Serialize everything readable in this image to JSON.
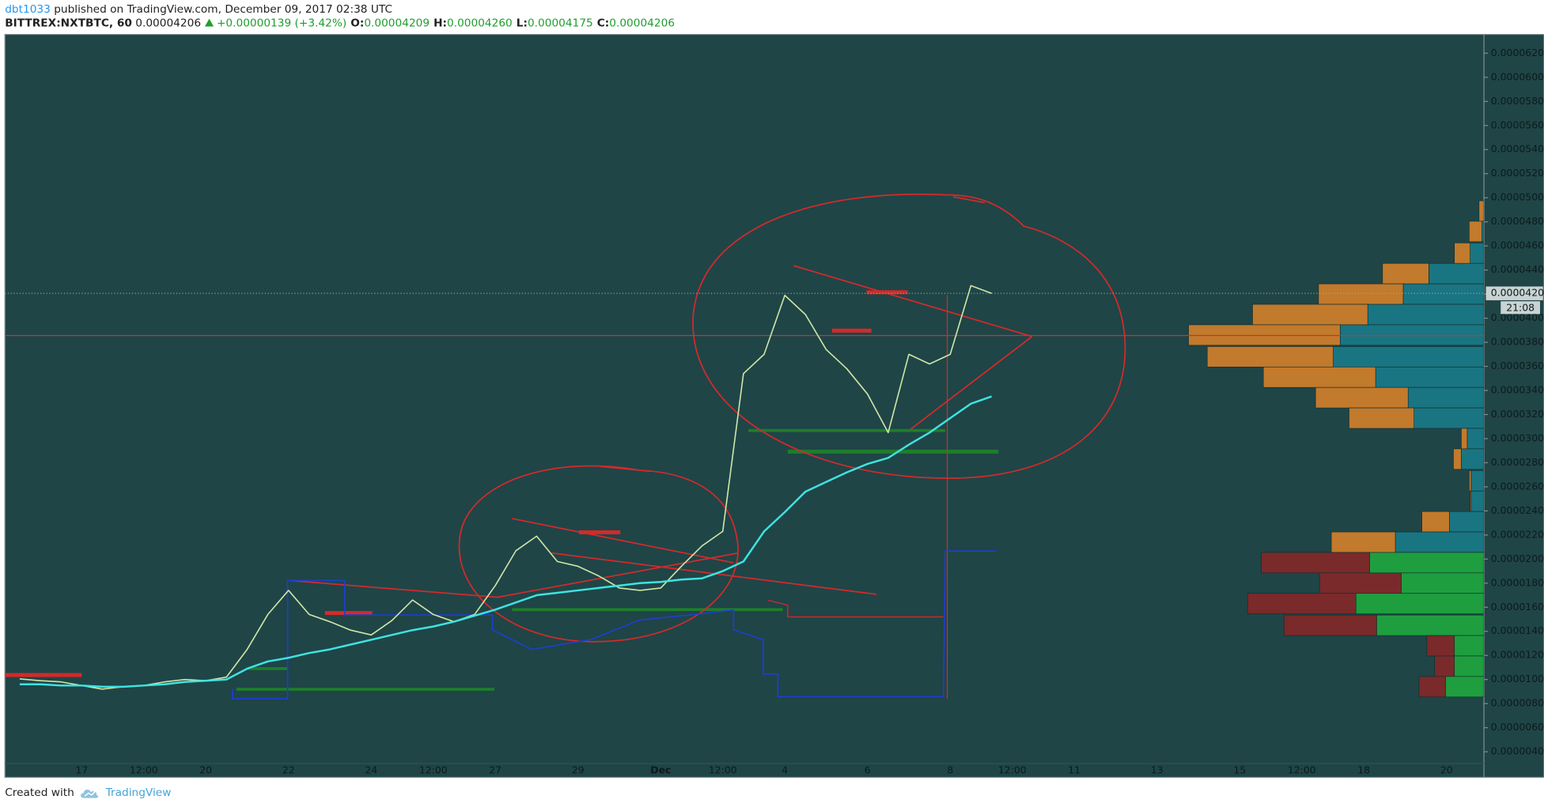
{
  "header": {
    "author": "dbt1033",
    "published": "published on TradingView.com, December 09, 2017 02:38 UTC",
    "symbol": "BITTREX:NXTBTC, 60",
    "last": "0.00004206",
    "change": "+0.00000139 (+3.42%)",
    "ohlc": [
      {
        "label": "O:",
        "value": "0.00004209"
      },
      {
        "label": "H:",
        "value": "0.00004260"
      },
      {
        "label": "L:",
        "value": "0.00004175"
      },
      {
        "label": "C:",
        "value": "0.00004206"
      }
    ]
  },
  "chart_data": {
    "type": "line",
    "categories": [
      null,
      null,
      null,
      "17",
      null,
      null,
      "12:00",
      null,
      null,
      "20",
      null,
      null,
      null,
      "22",
      null,
      null,
      null,
      "24",
      null,
      null,
      "12:00",
      null,
      null,
      "27",
      null,
      null,
      null,
      "29",
      null,
      null,
      null,
      "Dec",
      null,
      null,
      "12:00",
      null,
      null,
      "4",
      null,
      null,
      null,
      "6",
      null,
      null,
      null,
      "8",
      null,
      null,
      "12:00",
      null,
      null,
      "11",
      null,
      null,
      null,
      "13",
      null,
      null,
      null,
      "15",
      null,
      null,
      "12:00",
      null,
      null,
      "18",
      null,
      null,
      null,
      "20",
      null
    ],
    "series": [
      {
        "color": "#cfe6a8",
        "values": [
          1.005e-05,
          9.9e-06,
          9.8e-06,
          9.5e-06,
          9.2e-06,
          9.4e-06,
          9.5e-06,
          9.8e-06,
          1e-05,
          9.9e-06,
          1.02e-05,
          1.25e-05,
          1.54e-05,
          1.74e-05,
          1.54e-05,
          1.48e-05,
          1.41e-05,
          1.37e-05,
          1.49e-05,
          1.66e-05,
          1.54e-05,
          1.48e-05,
          1.54e-05,
          1.78e-05,
          2.07e-05,
          2.19e-05,
          1.98e-05,
          1.94e-05,
          1.86e-05,
          1.76e-05,
          1.74e-05,
          1.76e-05,
          1.94e-05,
          2.11e-05,
          2.23e-05,
          3.54e-05,
          3.7e-05,
          4.19e-05,
          4.03e-05,
          3.74e-05,
          3.58e-05,
          3.37e-05,
          3.05e-05,
          3.7e-05,
          3.62e-05,
          3.7e-05,
          4.27e-05,
          4.206e-05,
          null,
          null,
          null,
          null,
          null,
          null,
          null,
          null,
          null,
          null,
          null,
          null,
          null,
          null,
          null,
          null,
          null,
          null,
          null,
          null,
          null,
          null,
          null
        ]
      },
      {
        "color": "#3fe3e0",
        "values": [
          9.6e-06,
          9.6e-06,
          9.5e-06,
          9.5e-06,
          9.4e-06,
          9.4e-06,
          9.5e-06,
          9.6e-06,
          9.8e-06,
          9.9e-06,
          1e-05,
          1.09e-05,
          1.15e-05,
          1.18e-05,
          1.22e-05,
          1.25e-05,
          1.29e-05,
          1.33e-05,
          1.37e-05,
          1.41e-05,
          1.44e-05,
          1.48e-05,
          1.53e-05,
          1.58e-05,
          1.64e-05,
          1.7e-05,
          1.72e-05,
          1.74e-05,
          1.76e-05,
          1.78e-05,
          1.8e-05,
          1.81e-05,
          1.83e-05,
          1.84e-05,
          1.9e-05,
          1.98e-05,
          2.23e-05,
          2.39e-05,
          2.56e-05,
          2.64e-05,
          2.72e-05,
          2.79e-05,
          2.84e-05,
          2.95e-05,
          3.05e-05,
          3.17e-05,
          3.29e-05,
          3.35e-05,
          null,
          null,
          null,
          null,
          null,
          null,
          null,
          null,
          null,
          null,
          null,
          null,
          null,
          null,
          null,
          null,
          null,
          null,
          null,
          null,
          null,
          null,
          null
        ]
      }
    ],
    "ylim": [
      2.04e-06,
      6.356e-05
    ],
    "yticks": [
      {
        "value": 4e-06,
        "label": "0.00000400"
      },
      {
        "value": 6e-06,
        "label": "0.00000600"
      },
      {
        "value": 8e-06,
        "label": "0.00000800"
      },
      {
        "value": 1e-05,
        "label": "0.00001000"
      },
      {
        "value": 1.2e-05,
        "label": "0.00001200"
      },
      {
        "value": 1.4e-05,
        "label": "0.00001400"
      },
      {
        "value": 1.6e-05,
        "label": "0.00001600"
      },
      {
        "value": 1.8e-05,
        "label": "0.00001800"
      },
      {
        "value": 2e-05,
        "label": "0.00002000"
      },
      {
        "value": 2.2e-05,
        "label": "0.00002200"
      },
      {
        "value": 2.4e-05,
        "label": "0.00002400"
      },
      {
        "value": 2.6e-05,
        "label": "0.00002600"
      },
      {
        "value": 2.8e-05,
        "label": "0.00002800"
      },
      {
        "value": 3e-05,
        "label": "0.00003000"
      },
      {
        "value": 3.2e-05,
        "label": "0.00003200"
      },
      {
        "value": 3.4e-05,
        "label": "0.00003400"
      },
      {
        "value": 3.6e-05,
        "label": "0.00003600"
      },
      {
        "value": 3.8e-05,
        "label": "0.00003800"
      },
      {
        "value": 4e-05,
        "label": "0.00004000"
      },
      {
        "value": 4.2e-05,
        "label": "0.00004200"
      },
      {
        "value": 4.4e-05,
        "label": "0.00004400"
      },
      {
        "value": 4.6e-05,
        "label": "0.00004600"
      },
      {
        "value": 4.8e-05,
        "label": "0.00004800"
      },
      {
        "value": 5e-05,
        "label": "0.00005000"
      },
      {
        "value": 5.2e-05,
        "label": "0.00005200"
      },
      {
        "value": 5.4e-05,
        "label": "0.00005400"
      },
      {
        "value": 5.6e-05,
        "label": "0.00005600"
      },
      {
        "value": 5.8e-05,
        "label": "0.00005800"
      },
      {
        "value": 6e-05,
        "label": "0.00006000"
      },
      {
        "value": 6.2e-05,
        "label": "0.00006200"
      }
    ],
    "grid": false,
    "last_price": {
      "value": 4.206e-05,
      "label": "0.00004206"
    },
    "countdown": "21:08",
    "hlines": [
      {
        "value": 3.856e-05,
        "color": "#d32f2f"
      }
    ],
    "volume_profile": [
      {
        "up_color": "#c27a2c",
        "down_color": "#1a7582",
        "prices": [
          4.89e-05,
          4.72e-05,
          4.54e-05,
          4.37e-05,
          4.2e-05,
          4.03e-05,
          3.86e-05,
          3.68e-05,
          3.51e-05,
          3.34e-05,
          3.17e-05,
          3e-05,
          2.83e-05,
          2.65e-05,
          2.48e-05,
          2.31e-05,
          2.14e-05
        ],
        "up": [
          5,
          13,
          16,
          47,
          86,
          117,
          154,
          128,
          114,
          94,
          66,
          6,
          8,
          2,
          1,
          28,
          65
        ],
        "down": [
          0,
          2,
          14,
          56,
          82,
          118,
          146,
          153,
          110,
          77,
          71,
          17,
          23,
          13,
          13,
          35,
          90
        ]
      },
      {
        "up_color": "#7a2a2a",
        "down_color": "#1e9e3e",
        "prices": [
          1.97e-05,
          1.8e-05,
          1.63e-05,
          1.45e-05,
          1.28e-05,
          1.11e-05,
          9.4e-06
        ],
        "up": [
          110,
          83,
          110,
          94,
          28,
          20,
          27
        ],
        "down": [
          116,
          84,
          130,
          109,
          30,
          30,
          39
        ]
      }
    ]
  },
  "footer": {
    "text": "Created with",
    "brand": "TradingView"
  }
}
